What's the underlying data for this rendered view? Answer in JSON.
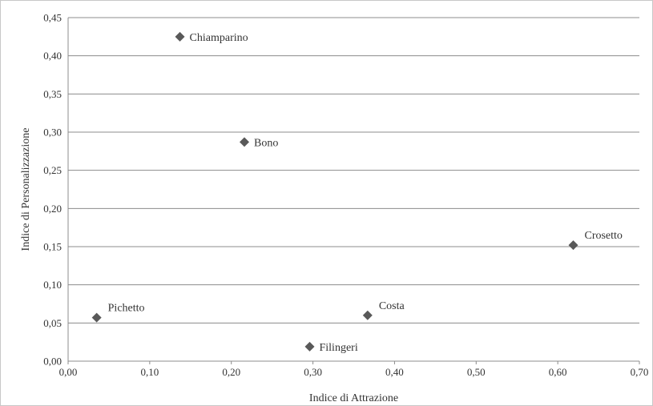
{
  "chart_data": {
    "type": "scatter",
    "title": "",
    "xlabel": "Indice di Attrazione",
    "ylabel": "Indice di Personalizzazione",
    "xlim": [
      0,
      0.7
    ],
    "ylim": [
      0,
      0.45
    ],
    "x_ticks": [
      "0,00",
      "0,10",
      "0,20",
      "0,30",
      "0,40",
      "0,50",
      "0,60",
      "0,70"
    ],
    "y_ticks": [
      "0,00",
      "0,05",
      "0,10",
      "0,15",
      "0,20",
      "0,25",
      "0,30",
      "0,35",
      "0,40",
      "0,45"
    ],
    "grid": "horizontal",
    "marker": "diamond",
    "marker_color": "#595959",
    "gridline_color": "#8c8c8c",
    "points": [
      {
        "label": "Chiamparino",
        "x": 0.137,
        "y": 0.425
      },
      {
        "label": "Bono",
        "x": 0.216,
        "y": 0.287
      },
      {
        "label": "Crosetto",
        "x": 0.619,
        "y": 0.152
      },
      {
        "label": "Pichetto",
        "x": 0.035,
        "y": 0.057
      },
      {
        "label": "Costa",
        "x": 0.367,
        "y": 0.06
      },
      {
        "label": "Filingeri",
        "x": 0.296,
        "y": 0.019
      }
    ]
  }
}
